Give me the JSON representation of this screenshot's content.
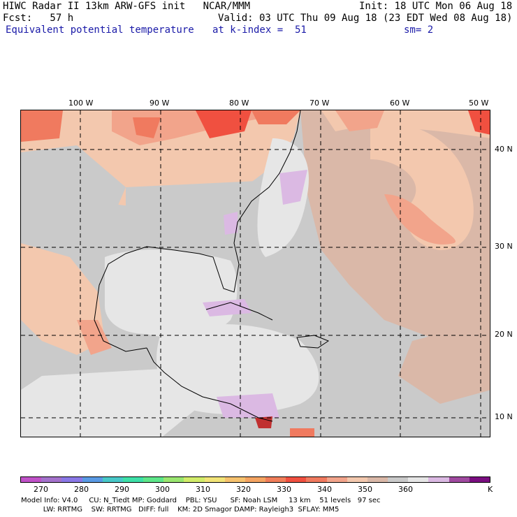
{
  "header": {
    "line1_left": "HIWC Radar II 13km ARW-GFS init   NCAR/MMM",
    "line1_right": "Init: 18 UTC Mon 06 Aug 18",
    "line2_left": "Fcst:   57 h",
    "line2_right": "Valid: 03 UTC Thu 09 Aug 18 (23 EDT Wed 08 Aug 18)",
    "line3_left": "Equivalent potential temperature",
    "line3_mid": "at k-index =  51",
    "line3_right": "sm= 2"
  },
  "map": {
    "lon_labels": [
      "100 W",
      "90 W",
      "80 W",
      "70 W",
      "60 W",
      "50 W"
    ],
    "lat_labels": [
      "40 N",
      "30 N",
      "20 N",
      "10 N"
    ],
    "colors": {
      "light_gray": "#e6e6e6",
      "gray": "#cacaca",
      "tan": "#dab8a8",
      "peach": "#f3c8ae",
      "salmon": "#f2a48b",
      "orange_red": "#f07a5f",
      "red": "#f05040",
      "lavender": "#dbb9e3"
    }
  },
  "colorbar": {
    "colors": [
      "#c052c8",
      "#a472cc",
      "#8a78e6",
      "#5a9ae4",
      "#48c8c8",
      "#3ee0a8",
      "#5ee68a",
      "#9ae670",
      "#d2ec6a",
      "#f2e478",
      "#f6c26e",
      "#f4a462",
      "#f07e5a",
      "#f05040",
      "#f07a5f",
      "#f2a48b",
      "#f3c8ae",
      "#dab8a8",
      "#cacaca",
      "#e6e6e6",
      "#dbb9e3",
      "#a04aa0",
      "#7a0e80"
    ],
    "ticks": [
      "270",
      "280",
      "290",
      "300",
      "310",
      "320",
      "330",
      "340",
      "350",
      "360"
    ],
    "unit": "K"
  },
  "footer": {
    "line1": "Model Info: V4.0     CU: N_Tiedt MP: Goddard    PBL: YSU      SF: Noah LSM     13 km    51 levels   97 sec",
    "line2": "          LW: RRTMG    SW: RRTMG   DIFF: full    KM: 2D Smagor DAMP: Rayleigh3  SFLAY: MM5"
  }
}
